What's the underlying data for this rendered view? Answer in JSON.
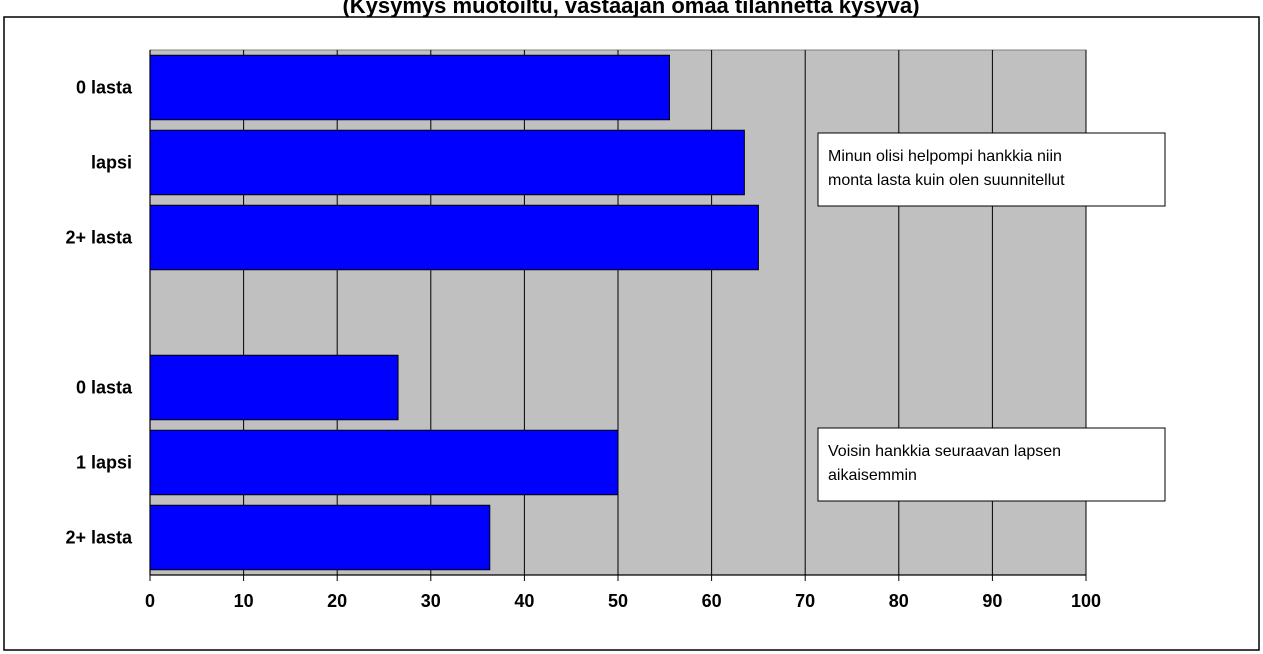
{
  "chart_data": {
    "type": "bar",
    "orientation": "horizontal",
    "title": "(Kysymys muotoiltu, vastaajan omaa tilannetta kysyvä)",
    "xlim": [
      0,
      100
    ],
    "x_ticks": [
      "0",
      "10",
      "20",
      "30",
      "40",
      "50",
      "60",
      "70",
      "80",
      "90",
      "100"
    ],
    "grid": "vertical",
    "colors": {
      "bar_fill": "#0000ff",
      "plot_background": "#c0c0c0",
      "grid": "#000000"
    },
    "groups": [
      {
        "annotation": [
          "Minun olisi helpompi hankkia niin",
          "monta lasta kuin olen suunnitellut"
        ],
        "categories": [
          "0 lasta",
          "lapsi",
          "2+ lasta"
        ],
        "values": [
          55.5,
          63.5,
          65
        ]
      },
      {
        "annotation": [
          "Voisin hankkia seuraavan lapsen",
          "aikaisemmin"
        ],
        "categories": [
          "0 lasta",
          "1 lapsi",
          "2+ lasta"
        ],
        "values": [
          26.5,
          50,
          36.3
        ]
      }
    ]
  }
}
